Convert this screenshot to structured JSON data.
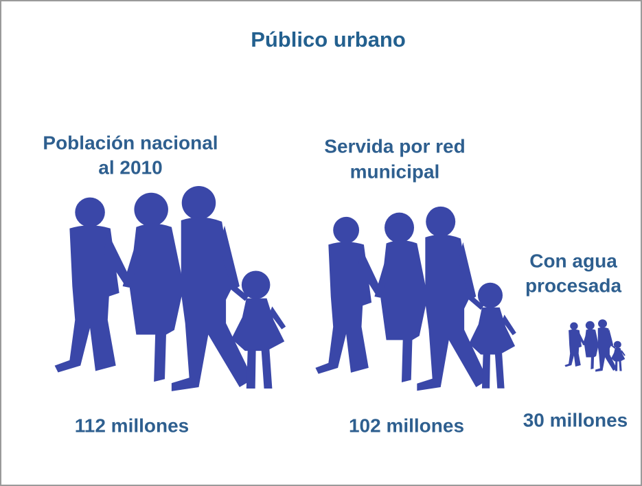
{
  "header": {
    "title": "Público urbano"
  },
  "groups": [
    {
      "label": [
        "Población nacional",
        "al 2010"
      ],
      "value": "112 millones"
    },
    {
      "label": [
        "Servida por red",
        "municipal"
      ],
      "value": "102 millones"
    },
    {
      "label": [
        "Con agua",
        "procesada"
      ],
      "value": "30 millones"
    }
  ]
}
